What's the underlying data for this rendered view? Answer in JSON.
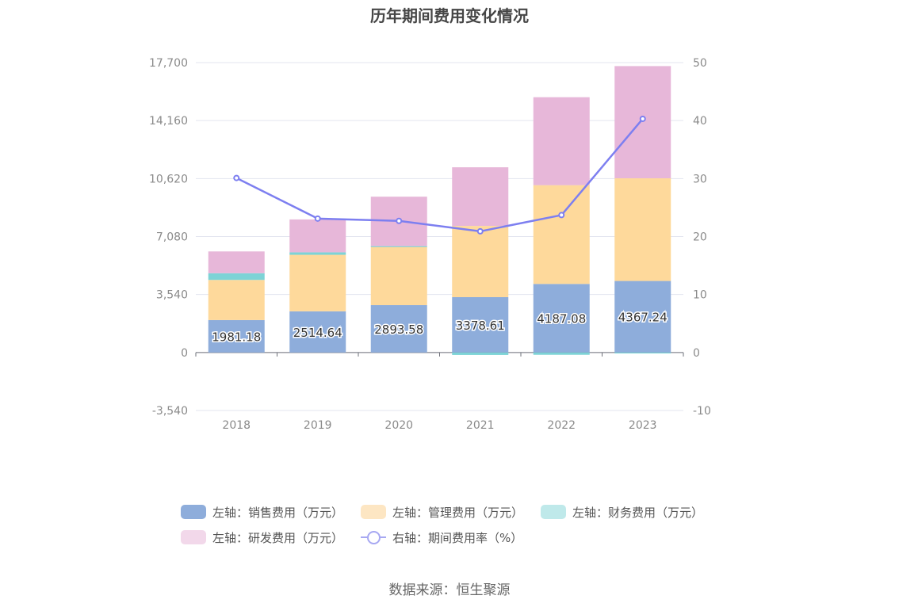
{
  "chart_data": {
    "type": "bar",
    "title": "历年期间费用变化情况",
    "categories": [
      "2018",
      "2019",
      "2020",
      "2021",
      "2022",
      "2023"
    ],
    "stacked": true,
    "y_left": {
      "ticks": [
        "17,700",
        "14,160",
        "10,620",
        "7,080",
        "3,540",
        "0",
        "-3,540"
      ],
      "ylim": [
        -3540,
        17700
      ]
    },
    "y_right": {
      "ticks": [
        "50",
        "40",
        "30",
        "20",
        "10",
        "0",
        "-10"
      ],
      "ylim": [
        -10,
        50
      ]
    },
    "grid": true,
    "legend_position": "bottom",
    "series": [
      {
        "name": "左轴：销售费用（万元）",
        "axis": "left",
        "type": "bar",
        "color": "#8eaddb",
        "values": [
          1981.18,
          2514.64,
          2893.58,
          3378.61,
          4187.08,
          4367.24
        ],
        "labels": [
          "1981.18",
          "2514.64",
          "2893.58",
          "3378.61",
          "4187.08",
          "4367.24"
        ]
      },
      {
        "name": "左轴：管理费用（万元）",
        "axis": "left",
        "type": "bar",
        "color": "#fed99b",
        "values": [
          2450,
          3450,
          3570,
          4350,
          6030,
          6270
        ]
      },
      {
        "name": "左轴：财务费用（万元）",
        "axis": "left",
        "type": "bar",
        "color": "#7dd3d6",
        "values": [
          410,
          150,
          30,
          -150,
          -140,
          -50
        ]
      },
      {
        "name": "左轴：研发费用（万元）",
        "axis": "left",
        "type": "bar",
        "color": "#e7b7d9",
        "values": [
          1330,
          2010,
          3020,
          3580,
          5370,
          6850
        ]
      },
      {
        "name": "右轴：期间费用率（%）",
        "axis": "right",
        "type": "line",
        "color": "#7d7ff0",
        "values": [
          30.1,
          23.1,
          22.7,
          20.9,
          23.7,
          40.3
        ]
      }
    ],
    "legend": {
      "rows": [
        [
          {
            "label": "左轴：销售费用（万元）",
            "kind": "bar",
            "color": "#8eaddb"
          },
          {
            "label": "左轴：管理费用（万元）",
            "kind": "bar",
            "color": "#fde6c3"
          },
          {
            "label": "左轴：财务费用（万元）",
            "kind": "bar",
            "color": "#bfe9ea"
          }
        ],
        [
          {
            "label": "左轴：研发费用（万元）",
            "kind": "bar",
            "color": "#f2d8ea"
          },
          {
            "label": "右轴：期间费用率（%）",
            "kind": "line",
            "color": "#a7a8f2"
          }
        ]
      ]
    }
  },
  "source": "数据来源：恒生聚源"
}
